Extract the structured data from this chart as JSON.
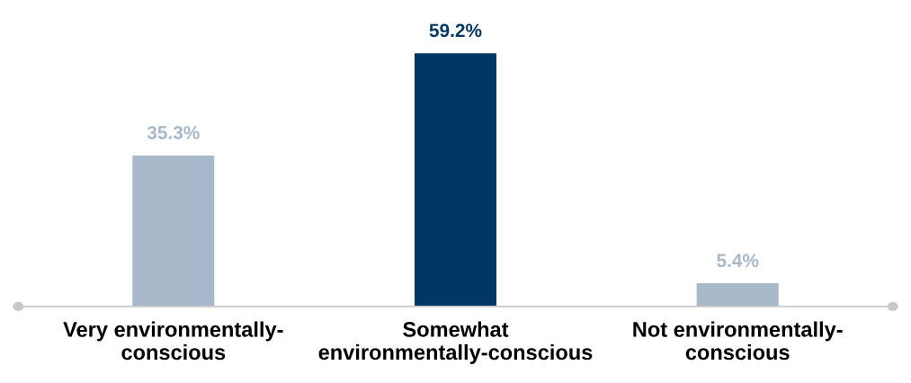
{
  "chart_data": {
    "type": "bar",
    "categories": [
      "Very environmentally-\nconscious",
      "Somewhat\nenvironmentally-conscious",
      "Not environmentally-\nconscious"
    ],
    "values": [
      35.3,
      59.2,
      5.4
    ],
    "value_labels": [
      "35.3%",
      "59.2%",
      "5.4%"
    ],
    "colors": [
      "#a7b8ca",
      "#003865",
      "#a7b8ca"
    ],
    "grid": false,
    "legend": false
  }
}
